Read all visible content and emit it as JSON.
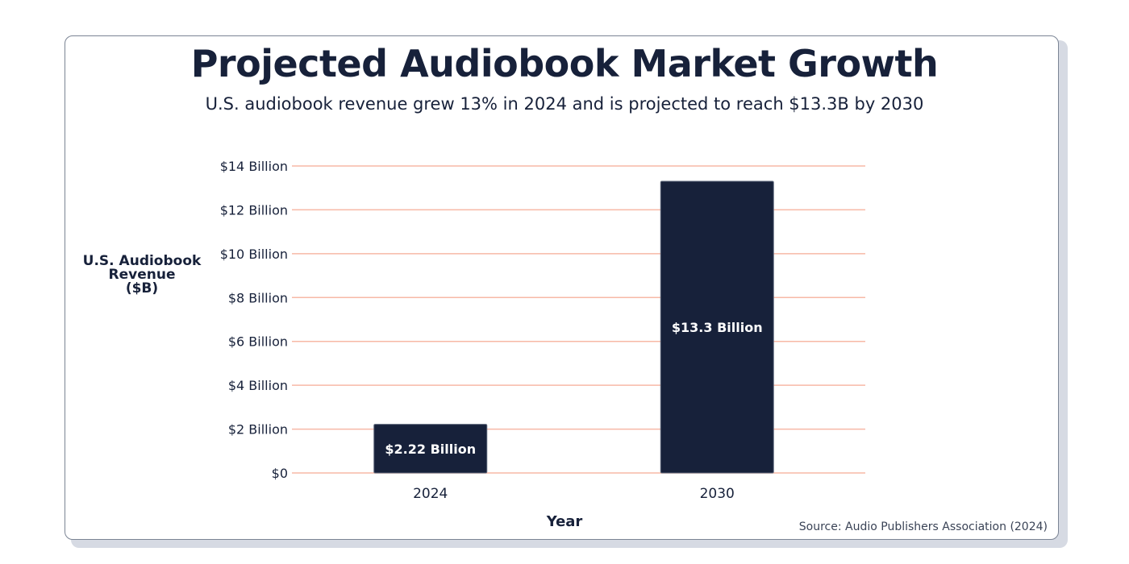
{
  "chart_data": {
    "type": "bar",
    "title": "Projected Audiobook Market Growth",
    "subtitle": "U.S. audiobook revenue grew 13% in 2024 and is projected to reach $13.3B by 2030",
    "xlabel": "Year",
    "ylabel_lines": [
      "U.S. Audiobook",
      "Revenue",
      "($B)"
    ],
    "categories": [
      "2024",
      "2030"
    ],
    "values": [
      2.22,
      13.3
    ],
    "data_labels": [
      "$2.22 Billion",
      "$13.3 Billion"
    ],
    "ylim": [
      0,
      14
    ],
    "yticks": [
      0,
      2,
      4,
      6,
      8,
      10,
      12,
      14
    ],
    "ytick_labels": [
      "$0",
      "$2 Billion",
      "$4 Billion",
      "$6 Billion",
      "$8 Billion",
      "$10 Billion",
      "$12 Billion",
      "$14 Billion"
    ],
    "grid": true,
    "source": "Source: Audio Publishers Association (2024)",
    "colors": {
      "bar": "#17213a",
      "grid": "#f7b9a6",
      "text": "#17213a",
      "label_text": "#ffffff"
    }
  }
}
